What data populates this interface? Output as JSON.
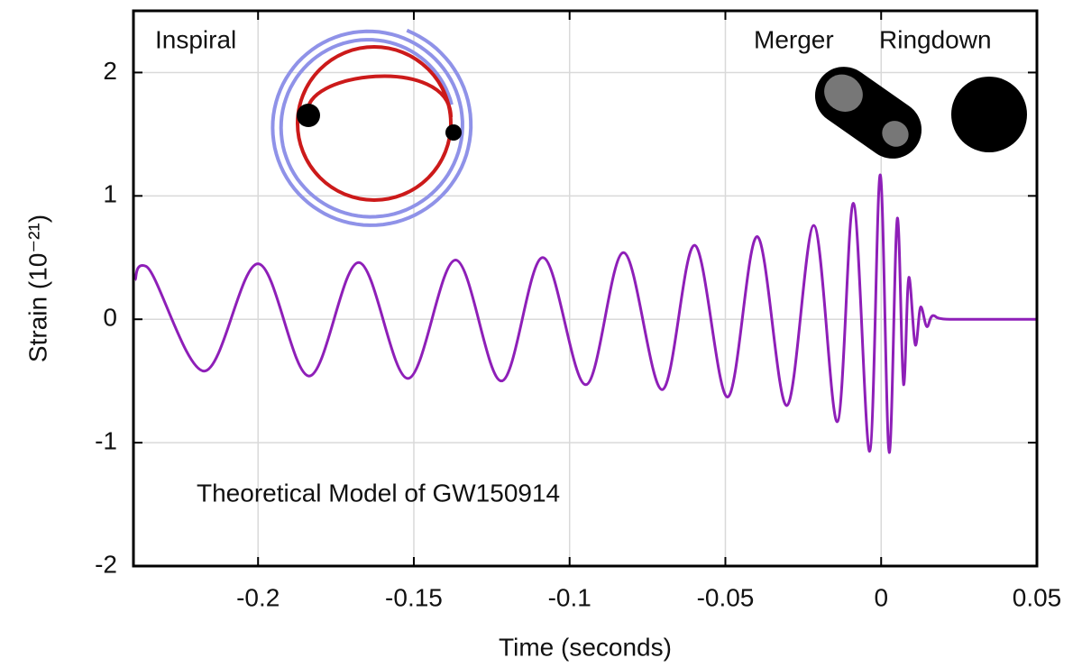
{
  "chart_data": {
    "type": "line",
    "x_label": "Time (seconds)",
    "y_label": "Strain (10⁻²¹)",
    "annotations": [
      "Inspiral",
      "Merger",
      "Ringdown",
      "Theoretical Model of GW150914"
    ],
    "color": "#8e1fb8",
    "grid": true,
    "xlim": [
      -0.24,
      0.05
    ],
    "ylim": [
      -2,
      2.5
    ],
    "xticks": [
      -0.2,
      -0.15,
      -0.1,
      -0.05,
      0,
      0.05
    ],
    "yticks": [
      -2,
      -1,
      0,
      1,
      2
    ],
    "x": [
      -0.2395,
      -0.236,
      -0.2173,
      -0.2,
      -0.1836,
      -0.1677,
      -0.1519,
      -0.1366,
      -0.1219,
      -0.1086,
      -0.0948,
      -0.0827,
      -0.0703,
      -0.0599,
      -0.0493,
      -0.0398,
      -0.0303,
      -0.0216,
      -0.0141,
      -0.0089,
      -0.0037,
      -0.0003,
      0.0026,
      0.0052,
      0.0072,
      0.0089,
      0.011,
      0.0127,
      0.0147,
      0.0167,
      0.022,
      0.05
    ],
    "values": [
      0.32,
      0.43,
      -0.42,
      0.45,
      -0.46,
      0.46,
      -0.48,
      0.48,
      -0.5,
      0.5,
      -0.53,
      0.54,
      -0.57,
      0.6,
      -0.63,
      0.67,
      -0.7,
      0.76,
      -0.83,
      0.94,
      -1.07,
      1.17,
      -1.08,
      0.82,
      -0.53,
      0.34,
      -0.21,
      0.1,
      -0.06,
      0.03,
      0,
      0
    ]
  }
}
